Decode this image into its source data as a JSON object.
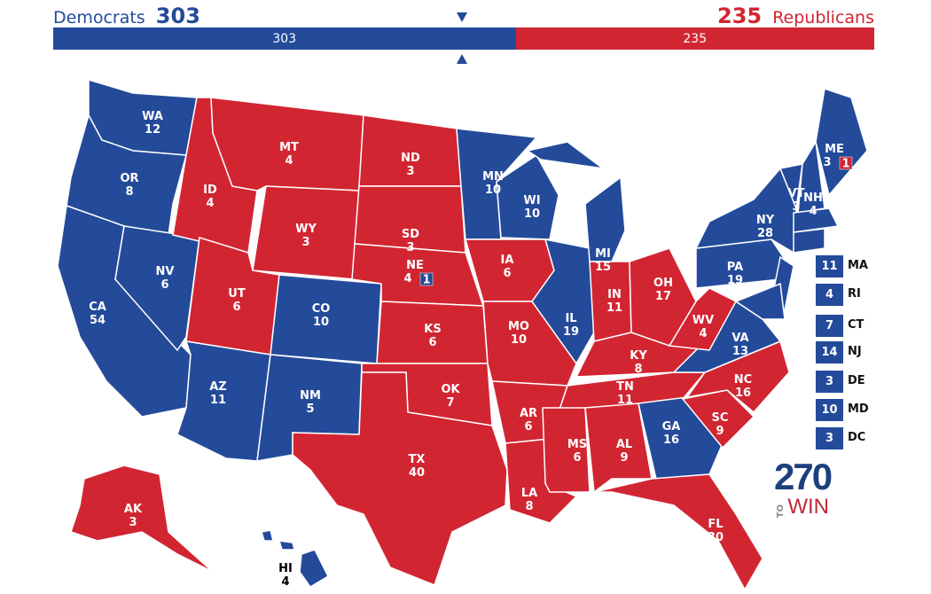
{
  "header": {
    "dem_label": "Democrats",
    "dem_total": "303",
    "rep_total": "235",
    "rep_label": "Republicans"
  },
  "bar": {
    "dem": "303",
    "rep": "235",
    "dem_value": 303,
    "rep_value": 235,
    "threshold": 270
  },
  "colors": {
    "dem": "#244a9a",
    "rep": "#d22532"
  },
  "states": [
    {
      "abbr": "WA",
      "ev": "12",
      "party": "D"
    },
    {
      "abbr": "OR",
      "ev": "8",
      "party": "D"
    },
    {
      "abbr": "CA",
      "ev": "54",
      "party": "D"
    },
    {
      "abbr": "NV",
      "ev": "6",
      "party": "D"
    },
    {
      "abbr": "ID",
      "ev": "4",
      "party": "R"
    },
    {
      "abbr": "MT",
      "ev": "4",
      "party": "R"
    },
    {
      "abbr": "WY",
      "ev": "3",
      "party": "R"
    },
    {
      "abbr": "UT",
      "ev": "6",
      "party": "R"
    },
    {
      "abbr": "AZ",
      "ev": "11",
      "party": "D"
    },
    {
      "abbr": "CO",
      "ev": "10",
      "party": "D"
    },
    {
      "abbr": "NM",
      "ev": "5",
      "party": "D"
    },
    {
      "abbr": "ND",
      "ev": "3",
      "party": "R"
    },
    {
      "abbr": "SD",
      "ev": "3",
      "party": "R"
    },
    {
      "abbr": "NE",
      "ev": "4",
      "party": "R"
    },
    {
      "abbr": "KS",
      "ev": "6",
      "party": "R"
    },
    {
      "abbr": "OK",
      "ev": "7",
      "party": "R"
    },
    {
      "abbr": "TX",
      "ev": "40",
      "party": "R"
    },
    {
      "abbr": "MN",
      "ev": "10",
      "party": "D"
    },
    {
      "abbr": "IA",
      "ev": "6",
      "party": "R"
    },
    {
      "abbr": "MO",
      "ev": "10",
      "party": "R"
    },
    {
      "abbr": "AR",
      "ev": "6",
      "party": "R"
    },
    {
      "abbr": "LA",
      "ev": "8",
      "party": "R"
    },
    {
      "abbr": "WI",
      "ev": "10",
      "party": "D"
    },
    {
      "abbr": "IL",
      "ev": "19",
      "party": "D"
    },
    {
      "abbr": "MI",
      "ev": "15",
      "party": "D"
    },
    {
      "abbr": "IN",
      "ev": "11",
      "party": "R"
    },
    {
      "abbr": "OH",
      "ev": "17",
      "party": "R"
    },
    {
      "abbr": "KY",
      "ev": "8",
      "party": "R"
    },
    {
      "abbr": "TN",
      "ev": "11",
      "party": "R"
    },
    {
      "abbr": "MS",
      "ev": "6",
      "party": "R"
    },
    {
      "abbr": "AL",
      "ev": "9",
      "party": "R"
    },
    {
      "abbr": "GA",
      "ev": "16",
      "party": "D"
    },
    {
      "abbr": "FL",
      "ev": "30",
      "party": "R"
    },
    {
      "abbr": "SC",
      "ev": "9",
      "party": "R"
    },
    {
      "abbr": "NC",
      "ev": "16",
      "party": "R"
    },
    {
      "abbr": "VA",
      "ev": "13",
      "party": "D"
    },
    {
      "abbr": "WV",
      "ev": "4",
      "party": "R"
    },
    {
      "abbr": "PA",
      "ev": "19",
      "party": "D"
    },
    {
      "abbr": "NY",
      "ev": "28",
      "party": "D"
    },
    {
      "abbr": "VT",
      "ev": "3",
      "party": "D"
    },
    {
      "abbr": "NH",
      "ev": "4",
      "party": "D"
    },
    {
      "abbr": "ME",
      "ev": "3",
      "party": "D"
    },
    {
      "abbr": "AK",
      "ev": "3",
      "party": "R"
    },
    {
      "abbr": "HI",
      "ev": "4",
      "party": "D"
    }
  ],
  "districts": [
    {
      "state": "NE",
      "ev": "1",
      "party": "D"
    },
    {
      "state": "ME",
      "ev": "1",
      "party": "R"
    }
  ],
  "small_states": [
    {
      "abbr": "MA",
      "ev": "11",
      "party": "D"
    },
    {
      "abbr": "RI",
      "ev": "4",
      "party": "D"
    },
    {
      "abbr": "CT",
      "ev": "7",
      "party": "D"
    },
    {
      "abbr": "NJ",
      "ev": "14",
      "party": "D"
    },
    {
      "abbr": "DE",
      "ev": "3",
      "party": "D"
    },
    {
      "abbr": "MD",
      "ev": "10",
      "party": "D"
    },
    {
      "abbr": "DC",
      "ev": "3",
      "party": "D"
    }
  ],
  "logo": {
    "number": "270",
    "to": "TO",
    "win": "WIN"
  }
}
